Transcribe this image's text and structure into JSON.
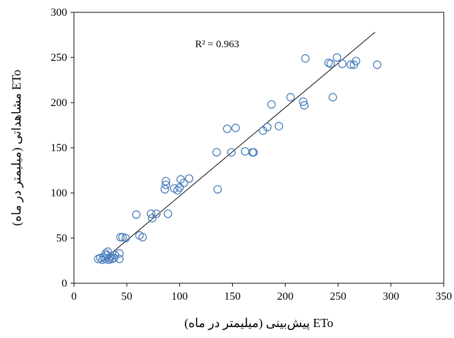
{
  "chart_data": {
    "type": "scatter",
    "xlabel": "ETo پیش‌بینی (میلیمتر در ماه)",
    "ylabel": "ETo مشاهداتی (میلیمتر در ماه)",
    "xlim": [
      0,
      350
    ],
    "ylim": [
      0,
      300
    ],
    "xticks": [
      0,
      50,
      100,
      150,
      200,
      250,
      300,
      350
    ],
    "yticks": [
      0,
      50,
      100,
      150,
      200,
      250,
      300
    ],
    "grid": false,
    "annotation": "R² = 0.963",
    "marker_color": "#4a7ebb",
    "trendline": {
      "x": [
        25,
        285
      ],
      "y": [
        23,
        278
      ],
      "color": "#000000"
    },
    "series": [
      {
        "points": [
          [
            23,
            27
          ],
          [
            25,
            28
          ],
          [
            27,
            26
          ],
          [
            28,
            29
          ],
          [
            30,
            27
          ],
          [
            30,
            33
          ],
          [
            31,
            31
          ],
          [
            32,
            35
          ],
          [
            33,
            26
          ],
          [
            34,
            28
          ],
          [
            35,
            30
          ],
          [
            36,
            27
          ],
          [
            38,
            28
          ],
          [
            39,
            31
          ],
          [
            43,
            27
          ],
          [
            43,
            33
          ],
          [
            44,
            51
          ],
          [
            46,
            51
          ],
          [
            49,
            50
          ],
          [
            59,
            76
          ],
          [
            62,
            53
          ],
          [
            65,
            51
          ],
          [
            73,
            77
          ],
          [
            74,
            72
          ],
          [
            78,
            77
          ],
          [
            86,
            104
          ],
          [
            87,
            113
          ],
          [
            87,
            109
          ],
          [
            89,
            77
          ],
          [
            95,
            105
          ],
          [
            98,
            103
          ],
          [
            100,
            106
          ],
          [
            101,
            115
          ],
          [
            104,
            111
          ],
          [
            109,
            116
          ],
          [
            135,
            145
          ],
          [
            136,
            104
          ],
          [
            145,
            171
          ],
          [
            149,
            145
          ],
          [
            153,
            172
          ],
          [
            162,
            146
          ],
          [
            169,
            145
          ],
          [
            170,
            145
          ],
          [
            179,
            169
          ],
          [
            183,
            173
          ],
          [
            187,
            198
          ],
          [
            194,
            174
          ],
          [
            205,
            206
          ],
          [
            217,
            201
          ],
          [
            218,
            197
          ],
          [
            219,
            249
          ],
          [
            241,
            244
          ],
          [
            243,
            243
          ],
          [
            245,
            206
          ],
          [
            249,
            250
          ],
          [
            254,
            243
          ],
          [
            262,
            242
          ],
          [
            265,
            242
          ],
          [
            267,
            246
          ],
          [
            287,
            242
          ]
        ]
      }
    ]
  }
}
